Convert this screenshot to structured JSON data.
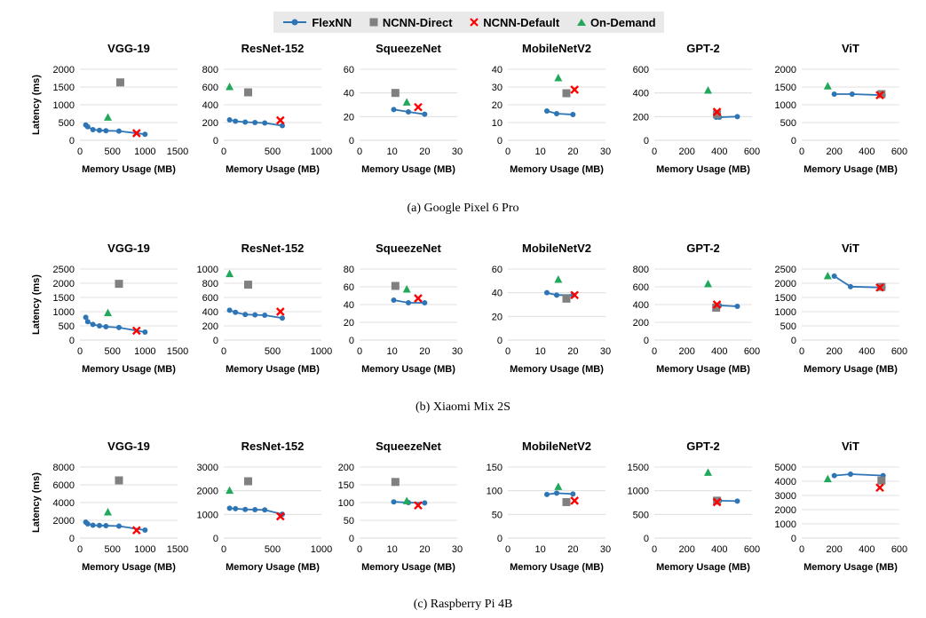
{
  "legend": {
    "series": [
      {
        "name": "FlexNN",
        "color": "#2e75b6",
        "marker": "line-dot"
      },
      {
        "name": "NCNN-Direct",
        "color": "#808080",
        "marker": "square"
      },
      {
        "name": "NCNN-Default",
        "color": "#ff0000",
        "marker": "x"
      },
      {
        "name": "On-Demand",
        "color": "#22a85b",
        "marker": "triangle"
      }
    ]
  },
  "captions": [
    "(a)  Google Pixel 6 Pro",
    "(b)  Xiaomi Mix 2S",
    "(c)  Raspberry Pi 4B"
  ],
  "chart_data": [
    {
      "type": "scatter",
      "device": "Google Pixel 6 Pro",
      "title": "VGG-19",
      "xlabel": "Memory Usage (MB)",
      "ylabel": "Latency (ms)",
      "xlim": [
        0,
        1500
      ],
      "xticks": [
        0,
        500,
        1000,
        1500
      ],
      "ylim": [
        0,
        2000
      ],
      "yticks": [
        0,
        500,
        1000,
        1500,
        2000
      ],
      "flexnn": [
        [
          90,
          430
        ],
        [
          120,
          380
        ],
        [
          200,
          300
        ],
        [
          300,
          280
        ],
        [
          400,
          270
        ],
        [
          600,
          260
        ],
        [
          1000,
          170
        ]
      ],
      "direct": [
        [
          620,
          1630
        ]
      ],
      "default": [
        [
          870,
          200
        ]
      ],
      "ondemand": [
        [
          430,
          640
        ]
      ]
    },
    {
      "type": "scatter",
      "device": "Google Pixel 6 Pro",
      "title": "ResNet-152",
      "xlabel": "Memory Usage (MB)",
      "ylabel": "",
      "xlim": [
        0,
        1000
      ],
      "xticks": [
        0,
        500,
        1000
      ],
      "ylim": [
        0,
        800
      ],
      "yticks": [
        0,
        200,
        400,
        600,
        800
      ],
      "flexnn": [
        [
          60,
          230
        ],
        [
          120,
          215
        ],
        [
          220,
          205
        ],
        [
          320,
          200
        ],
        [
          420,
          195
        ],
        [
          600,
          165
        ]
      ],
      "direct": [
        [
          250,
          540
        ]
      ],
      "default": [
        [
          580,
          225
        ]
      ],
      "ondemand": [
        [
          60,
          600
        ]
      ]
    },
    {
      "type": "scatter",
      "device": "Google Pixel 6 Pro",
      "title": "SqueezeNet",
      "xlabel": "Memory Usage (MB)",
      "ylabel": "",
      "xlim": [
        0,
        30
      ],
      "xticks": [
        0,
        10,
        20,
        30
      ],
      "ylim": [
        0,
        60
      ],
      "yticks": [
        0,
        20,
        40,
        60
      ],
      "flexnn": [
        [
          10.5,
          26
        ],
        [
          15,
          24
        ],
        [
          20,
          22
        ]
      ],
      "direct": [
        [
          11,
          40
        ]
      ],
      "default": [
        [
          18,
          28
        ]
      ],
      "ondemand": [
        [
          14.5,
          32
        ]
      ]
    },
    {
      "type": "scatter",
      "device": "Google Pixel 6 Pro",
      "title": "MobileNetV2",
      "xlabel": "Memory Usage (MB)",
      "ylabel": "",
      "xlim": [
        0,
        30
      ],
      "xticks": [
        0,
        10,
        20,
        30
      ],
      "ylim": [
        0,
        40
      ],
      "yticks": [
        0,
        10,
        20,
        30,
        40
      ],
      "flexnn": [
        [
          12,
          16.5
        ],
        [
          15,
          15
        ],
        [
          20,
          14.5
        ]
      ],
      "direct": [
        [
          18,
          26.5
        ]
      ],
      "default": [
        [
          20.5,
          28.5
        ]
      ],
      "ondemand": [
        [
          15.5,
          35
        ]
      ]
    },
    {
      "type": "scatter",
      "device": "Google Pixel 6 Pro",
      "title": "GPT-2",
      "xlabel": "Memory Usage (MB)",
      "ylabel": "",
      "xlim": [
        0,
        600
      ],
      "xticks": [
        0,
        200,
        400,
        600
      ],
      "ylim": [
        0,
        600
      ],
      "yticks": [
        0,
        200,
        400,
        600
      ],
      "flexnn": [
        [
          380,
          195
        ],
        [
          400,
          195
        ],
        [
          510,
          200
        ]
      ],
      "direct": [
        [
          385,
          220
        ]
      ],
      "default": [
        [
          385,
          240
        ]
      ],
      "ondemand": [
        [
          330,
          420
        ]
      ]
    },
    {
      "type": "scatter",
      "device": "Google Pixel 6 Pro",
      "title": "ViT",
      "xlabel": "Memory Usage (MB)",
      "ylabel": "",
      "xlim": [
        0,
        600
      ],
      "xticks": [
        0,
        200,
        400,
        600
      ],
      "ylim": [
        0,
        2000
      ],
      "yticks": [
        0,
        500,
        1000,
        1500,
        2000
      ],
      "flexnn": [
        [
          200,
          1300
        ],
        [
          310,
          1300
        ],
        [
          500,
          1270
        ]
      ],
      "direct": [
        [
          490,
          1300
        ]
      ],
      "default": [
        [
          480,
          1270
        ]
      ],
      "ondemand": [
        [
          160,
          1520
        ]
      ]
    },
    {
      "type": "scatter",
      "device": "Xiaomi Mix 2S",
      "title": "VGG-19",
      "xlabel": "Memory Usage (MB)",
      "ylabel": "Latency (ms)",
      "xlim": [
        0,
        1500
      ],
      "xticks": [
        0,
        500,
        1000,
        1500
      ],
      "ylim": [
        0,
        2500
      ],
      "yticks": [
        0,
        500,
        1000,
        1500,
        2000,
        2500
      ],
      "flexnn": [
        [
          90,
          800
        ],
        [
          120,
          650
        ],
        [
          200,
          550
        ],
        [
          300,
          500
        ],
        [
          400,
          470
        ],
        [
          600,
          440
        ],
        [
          1000,
          280
        ]
      ],
      "direct": [
        [
          600,
          1980
        ]
      ],
      "default": [
        [
          870,
          330
        ]
      ],
      "ondemand": [
        [
          430,
          950
        ]
      ]
    },
    {
      "type": "scatter",
      "device": "Xiaomi Mix 2S",
      "title": "ResNet-152",
      "xlabel": "Memory Usage (MB)",
      "ylabel": "",
      "xlim": [
        0,
        1000
      ],
      "xticks": [
        0,
        500,
        1000
      ],
      "ylim": [
        0,
        1000
      ],
      "yticks": [
        0,
        200,
        400,
        600,
        800,
        1000
      ],
      "flexnn": [
        [
          60,
          420
        ],
        [
          120,
          390
        ],
        [
          220,
          360
        ],
        [
          320,
          355
        ],
        [
          420,
          350
        ],
        [
          600,
          310
        ]
      ],
      "direct": [
        [
          250,
          780
        ]
      ],
      "default": [
        [
          580,
          400
        ]
      ],
      "ondemand": [
        [
          60,
          930
        ]
      ]
    },
    {
      "type": "scatter",
      "device": "Xiaomi Mix 2S",
      "title": "SqueezeNet",
      "xlabel": "Memory Usage (MB)",
      "ylabel": "",
      "xlim": [
        0,
        30
      ],
      "xticks": [
        0,
        10,
        20,
        30
      ],
      "ylim": [
        0,
        80
      ],
      "yticks": [
        0,
        20,
        40,
        60,
        80
      ],
      "flexnn": [
        [
          10.5,
          45
        ],
        [
          15,
          42
        ],
        [
          20,
          42
        ]
      ],
      "direct": [
        [
          11,
          61
        ]
      ],
      "default": [
        [
          18,
          47
        ]
      ],
      "ondemand": [
        [
          14.5,
          57
        ]
      ]
    },
    {
      "type": "scatter",
      "device": "Xiaomi Mix 2S",
      "title": "MobileNetV2",
      "xlabel": "Memory Usage (MB)",
      "ylabel": "",
      "xlim": [
        0,
        30
      ],
      "xticks": [
        0,
        10,
        20,
        30
      ],
      "ylim": [
        0,
        60
      ],
      "yticks": [
        0,
        20,
        40,
        60
      ],
      "flexnn": [
        [
          12,
          40
        ],
        [
          15,
          38
        ],
        [
          20,
          38
        ]
      ],
      "direct": [
        [
          18,
          35
        ]
      ],
      "default": [
        [
          20.5,
          38
        ]
      ],
      "ondemand": [
        [
          15.5,
          51
        ]
      ]
    },
    {
      "type": "scatter",
      "device": "Xiaomi Mix 2S",
      "title": "GPT-2",
      "xlabel": "Memory Usage (MB)",
      "ylabel": "",
      "xlim": [
        0,
        600
      ],
      "xticks": [
        0,
        200,
        400,
        600
      ],
      "ylim": [
        0,
        800
      ],
      "yticks": [
        0,
        200,
        400,
        600,
        800
      ],
      "flexnn": [
        [
          380,
          390
        ],
        [
          400,
          390
        ],
        [
          510,
          380
        ]
      ],
      "direct": [
        [
          380,
          365
        ]
      ],
      "default": [
        [
          385,
          400
        ]
      ],
      "ondemand": [
        [
          330,
          630
        ]
      ]
    },
    {
      "type": "scatter",
      "device": "Xiaomi Mix 2S",
      "title": "ViT",
      "xlabel": "Memory Usage (MB)",
      "ylabel": "",
      "xlim": [
        0,
        600
      ],
      "xticks": [
        0,
        200,
        400,
        600
      ],
      "ylim": [
        0,
        2500
      ],
      "yticks": [
        0,
        500,
        1000,
        1500,
        2000,
        2500
      ],
      "flexnn": [
        [
          200,
          2250
        ],
        [
          300,
          1880
        ],
        [
          500,
          1850
        ]
      ],
      "direct": [
        [
          490,
          1870
        ]
      ],
      "default": [
        [
          480,
          1850
        ]
      ],
      "ondemand": [
        [
          160,
          2250
        ]
      ]
    },
    {
      "type": "scatter",
      "device": "Raspberry Pi 4B",
      "title": "VGG-19",
      "xlabel": "Memory Usage (MB)",
      "ylabel": "Latency (ms)",
      "xlim": [
        0,
        1500
      ],
      "xticks": [
        0,
        500,
        1000,
        1500
      ],
      "ylim": [
        0,
        8000
      ],
      "yticks": [
        0,
        2000,
        4000,
        6000,
        8000
      ],
      "flexnn": [
        [
          90,
          1800
        ],
        [
          120,
          1600
        ],
        [
          200,
          1450
        ],
        [
          300,
          1420
        ],
        [
          400,
          1400
        ],
        [
          600,
          1350
        ],
        [
          1000,
          900
        ]
      ],
      "direct": [
        [
          600,
          6500
        ]
      ],
      "default": [
        [
          870,
          880
        ]
      ],
      "ondemand": [
        [
          430,
          2900
        ]
      ]
    },
    {
      "type": "scatter",
      "device": "Raspberry Pi 4B",
      "title": "ResNet-152",
      "xlabel": "Memory Usage (MB)",
      "ylabel": "",
      "xlim": [
        0,
        1000
      ],
      "xticks": [
        0,
        500,
        1000
      ],
      "ylim": [
        0,
        3000
      ],
      "yticks": [
        0,
        1000,
        2000,
        3000
      ],
      "flexnn": [
        [
          60,
          1260
        ],
        [
          120,
          1240
        ],
        [
          220,
          1210
        ],
        [
          320,
          1200
        ],
        [
          420,
          1190
        ],
        [
          600,
          1010
        ]
      ],
      "direct": [
        [
          250,
          2400
        ]
      ],
      "default": [
        [
          580,
          920
        ]
      ],
      "ondemand": [
        [
          60,
          2000
        ]
      ]
    },
    {
      "type": "scatter",
      "device": "Raspberry Pi 4B",
      "title": "SqueezeNet",
      "xlabel": "Memory Usage (MB)",
      "ylabel": "",
      "xlim": [
        0,
        30
      ],
      "xticks": [
        0,
        10,
        20,
        30
      ],
      "ylim": [
        0,
        200
      ],
      "yticks": [
        0,
        50,
        100,
        150,
        200
      ],
      "flexnn": [
        [
          10.5,
          102
        ],
        [
          15,
          100
        ],
        [
          20,
          99
        ]
      ],
      "direct": [
        [
          11,
          158
        ]
      ],
      "default": [
        [
          18,
          92
        ]
      ],
      "ondemand": [
        [
          14.5,
          104
        ]
      ]
    },
    {
      "type": "scatter",
      "device": "Raspberry Pi 4B",
      "title": "MobileNetV2",
      "xlabel": "Memory Usage (MB)",
      "ylabel": "",
      "xlim": [
        0,
        30
      ],
      "xticks": [
        0,
        10,
        20,
        30
      ],
      "ylim": [
        0,
        150
      ],
      "yticks": [
        0,
        50,
        100,
        150
      ],
      "flexnn": [
        [
          12,
          92
        ],
        [
          15,
          95
        ],
        [
          20,
          93
        ]
      ],
      "direct": [
        [
          18,
          76
        ]
      ],
      "default": [
        [
          20.5,
          79
        ]
      ],
      "ondemand": [
        [
          15.5,
          108
        ]
      ]
    },
    {
      "type": "scatter",
      "device": "Raspberry Pi 4B",
      "title": "GPT-2",
      "xlabel": "Memory Usage (MB)",
      "ylabel": "",
      "xlim": [
        0,
        600
      ],
      "xticks": [
        0,
        200,
        400,
        600
      ],
      "ylim": [
        0,
        1500
      ],
      "yticks": [
        0,
        500,
        1000,
        1500
      ],
      "flexnn": [
        [
          380,
          790
        ],
        [
          400,
          790
        ],
        [
          510,
          780
        ]
      ],
      "direct": [
        [
          385,
          790
        ]
      ],
      "default": [
        [
          385,
          760
        ]
      ],
      "ondemand": [
        [
          330,
          1380
        ]
      ]
    },
    {
      "type": "scatter",
      "device": "Raspberry Pi 4B",
      "title": "ViT",
      "xlabel": "Memory Usage (MB)",
      "ylabel": "",
      "xlim": [
        0,
        600
      ],
      "xticks": [
        0,
        200,
        400,
        600
      ],
      "ylim": [
        0,
        5000
      ],
      "yticks": [
        0,
        1000,
        2000,
        3000,
        4000,
        5000
      ],
      "flexnn": [
        [
          200,
          4400
        ],
        [
          300,
          4500
        ],
        [
          500,
          4400
        ]
      ],
      "direct": [
        [
          490,
          4050
        ]
      ],
      "default": [
        [
          480,
          3550
        ]
      ],
      "ondemand": [
        [
          160,
          4150
        ]
      ]
    }
  ]
}
